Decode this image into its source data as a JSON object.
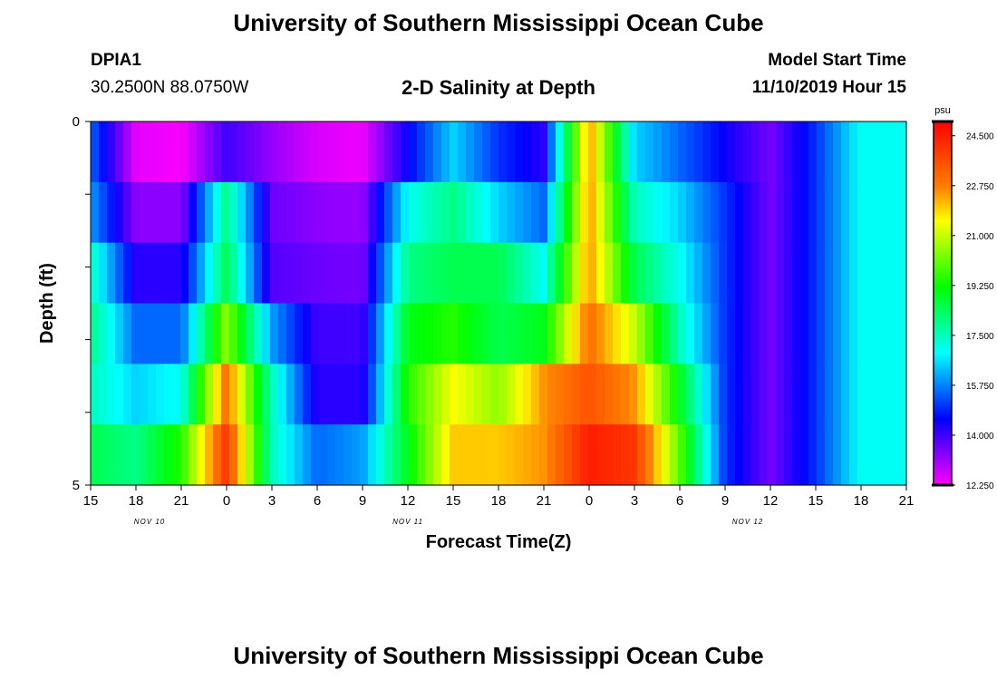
{
  "header": {
    "title": "University of Southern Mississippi Ocean Cube",
    "station_id": "DPIA1",
    "coordinates": "30.2500N 88.0750W",
    "plot_title": "2-D Salinity at Depth",
    "model_start_label": "Model Start Time",
    "model_start_value": "11/10/2019 Hour 15"
  },
  "footer": {
    "title": "University of Southern Mississippi Ocean Cube"
  },
  "colors": {
    "background": "#ffffff",
    "text": "#000000",
    "colorscale": [
      "#ff00ff",
      "#8000ff",
      "#0000ff",
      "#0080ff",
      "#00ffff",
      "#00ff80",
      "#00ff00",
      "#80ff00",
      "#ffff00",
      "#ff8000",
      "#ff4000",
      "#ff0000"
    ]
  },
  "chart_data": {
    "type": "heatmap",
    "xlabel": "Forecast Time(Z)",
    "ylabel": "Depth (ft)",
    "x_tick_labels": [
      "15",
      "18",
      "21",
      "0",
      "3",
      "6",
      "9",
      "12",
      "15",
      "18",
      "21",
      "0",
      "3",
      "6",
      "9",
      "12",
      "15",
      "18",
      "21"
    ],
    "date_labels": [
      {
        "label": "NOV 10",
        "tick_index": 1.3
      },
      {
        "label": "NOV 11",
        "tick_index": 7
      },
      {
        "label": "NOV 12",
        "tick_index": 14.5
      }
    ],
    "y_tick_labels": [
      "0",
      "5"
    ],
    "ylim": [
      0,
      5
    ],
    "colorbar": {
      "unit": "psu",
      "min": 12.25,
      "max": 25.0,
      "tick_labels": [
        "24.500",
        "22.750",
        "21.000",
        "19.250",
        "17.500",
        "15.750",
        "14.000",
        "12.250"
      ],
      "tick_values": [
        24.5,
        22.75,
        21.0,
        19.25,
        17.5,
        15.75,
        14.0,
        12.25
      ]
    },
    "depth_layers": [
      0.5,
      1.5,
      2.5,
      3.5,
      4.5,
      5.0
    ],
    "hours_from_start": [
      0,
      3,
      6,
      9,
      12,
      15,
      18,
      21,
      24,
      27,
      30,
      33,
      36,
      39,
      42,
      45,
      48,
      51,
      54
    ],
    "salinity_psu": [
      [
        15.5,
        12.5,
        12.3,
        14.0,
        13.2,
        12.6,
        12.4,
        14.5,
        16.5,
        15.0,
        14.2,
        22.5,
        16.5,
        15.5,
        14.5,
        13.5,
        15.0,
        17.0,
        17.0
      ],
      [
        16.0,
        13.3,
        13.3,
        18.0,
        13.6,
        13.3,
        13.2,
        17.0,
        18.0,
        16.5,
        15.5,
        22.5,
        17.5,
        16.5,
        15.0,
        13.5,
        15.0,
        17.0,
        17.0
      ],
      [
        17.5,
        14.2,
        14.2,
        18.5,
        13.8,
        13.6,
        13.5,
        18.0,
        18.5,
        18.5,
        17.0,
        22.5,
        18.5,
        17.0,
        15.0,
        13.5,
        15.0,
        17.0,
        17.0
      ],
      [
        18.0,
        15.5,
        15.5,
        20.5,
        16.0,
        14.0,
        14.0,
        19.0,
        19.5,
        18.5,
        19.0,
        23.0,
        21.0,
        17.5,
        15.0,
        13.5,
        15.0,
        17.0,
        17.0
      ],
      [
        17.5,
        16.5,
        17.0,
        23.0,
        17.5,
        14.2,
        14.2,
        19.5,
        21.5,
        20.5,
        22.5,
        23.5,
        22.5,
        19.0,
        15.0,
        13.5,
        15.0,
        17.0,
        17.0
      ],
      [
        18.5,
        18.0,
        19.5,
        24.0,
        17.5,
        15.5,
        16.0,
        19.0,
        22.0,
        22.0,
        22.5,
        24.5,
        24.0,
        20.0,
        15.0,
        13.5,
        15.0,
        17.0,
        17.0
      ]
    ]
  }
}
